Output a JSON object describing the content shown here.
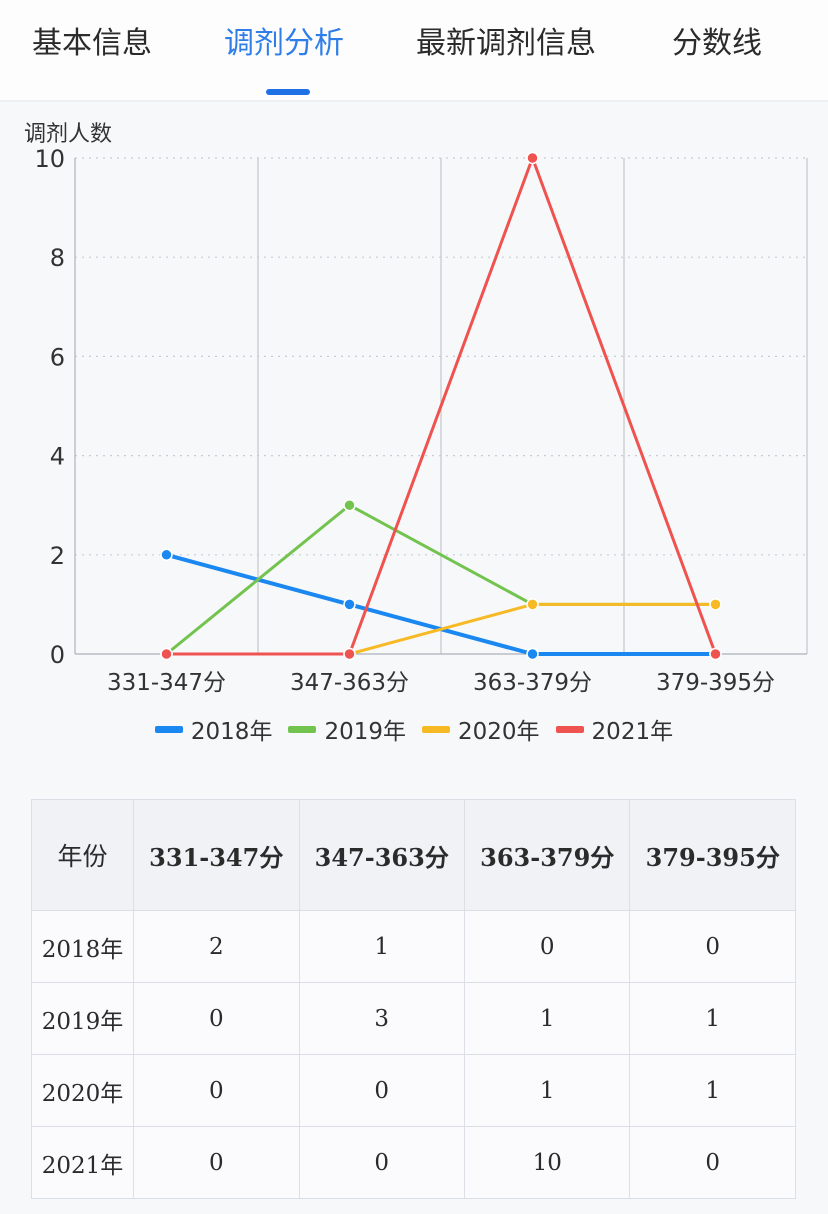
{
  "tabs": [
    {
      "label": "基本信息",
      "active": false
    },
    {
      "label": "调剂分析",
      "active": true
    },
    {
      "label": "最新调剂信息",
      "active": false
    },
    {
      "label": "分数线",
      "active": false
    }
  ],
  "chart_data": {
    "type": "line",
    "title": "",
    "xlabel": "",
    "ylabel": "调剂人数",
    "categories": [
      "331-347分",
      "347-363分",
      "363-379分",
      "379-395分"
    ],
    "ylim": [
      0,
      10
    ],
    "yticks": [
      0,
      2,
      4,
      6,
      8,
      10
    ],
    "grid": true,
    "legend_position": "bottom",
    "series": [
      {
        "name": "2018年",
        "color": "#1a88f0",
        "values": [
          2,
          1,
          0,
          0
        ]
      },
      {
        "name": "2019年",
        "color": "#73c44f",
        "values": [
          0,
          3,
          1,
          1
        ]
      },
      {
        "name": "2020年",
        "color": "#f7b924",
        "values": [
          0,
          0,
          1,
          1
        ]
      },
      {
        "name": "2021年",
        "color": "#ef5350",
        "values": [
          0,
          0,
          10,
          0
        ]
      }
    ]
  },
  "table": {
    "headers": [
      "年份",
      "331-347分",
      "347-363分",
      "363-379分",
      "379-395分"
    ],
    "rows": [
      [
        "2018年",
        "2",
        "1",
        "0",
        "0"
      ],
      [
        "2019年",
        "0",
        "3",
        "1",
        "1"
      ],
      [
        "2020年",
        "0",
        "0",
        "1",
        "1"
      ],
      [
        "2021年",
        "0",
        "0",
        "10",
        "0"
      ]
    ]
  }
}
